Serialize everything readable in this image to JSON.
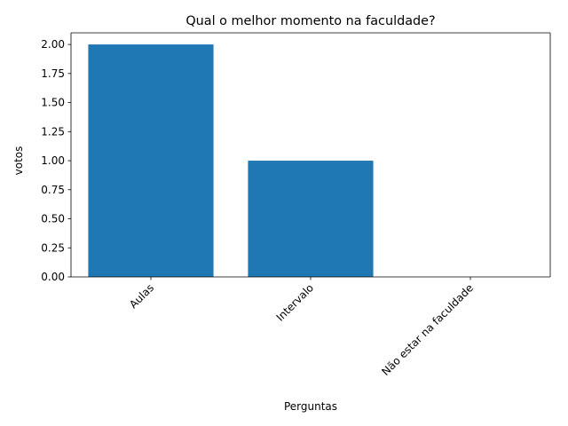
{
  "chart_data": {
    "type": "bar",
    "title": "Qual o melhor momento na faculdade?",
    "xlabel": "Perguntas",
    "ylabel": "votos",
    "categories": [
      "Aulas",
      "Intervalo",
      "Não estar na faculdade"
    ],
    "values": [
      2,
      1,
      0
    ],
    "ylim": [
      0,
      2.1
    ],
    "yticks": [
      "0.00",
      "0.25",
      "0.50",
      "0.75",
      "1.00",
      "1.25",
      "1.50",
      "1.75",
      "2.00"
    ],
    "xtick_rotation": "45 degrees",
    "grid": false,
    "legend": "none",
    "bar_color": "#1f77b4"
  }
}
